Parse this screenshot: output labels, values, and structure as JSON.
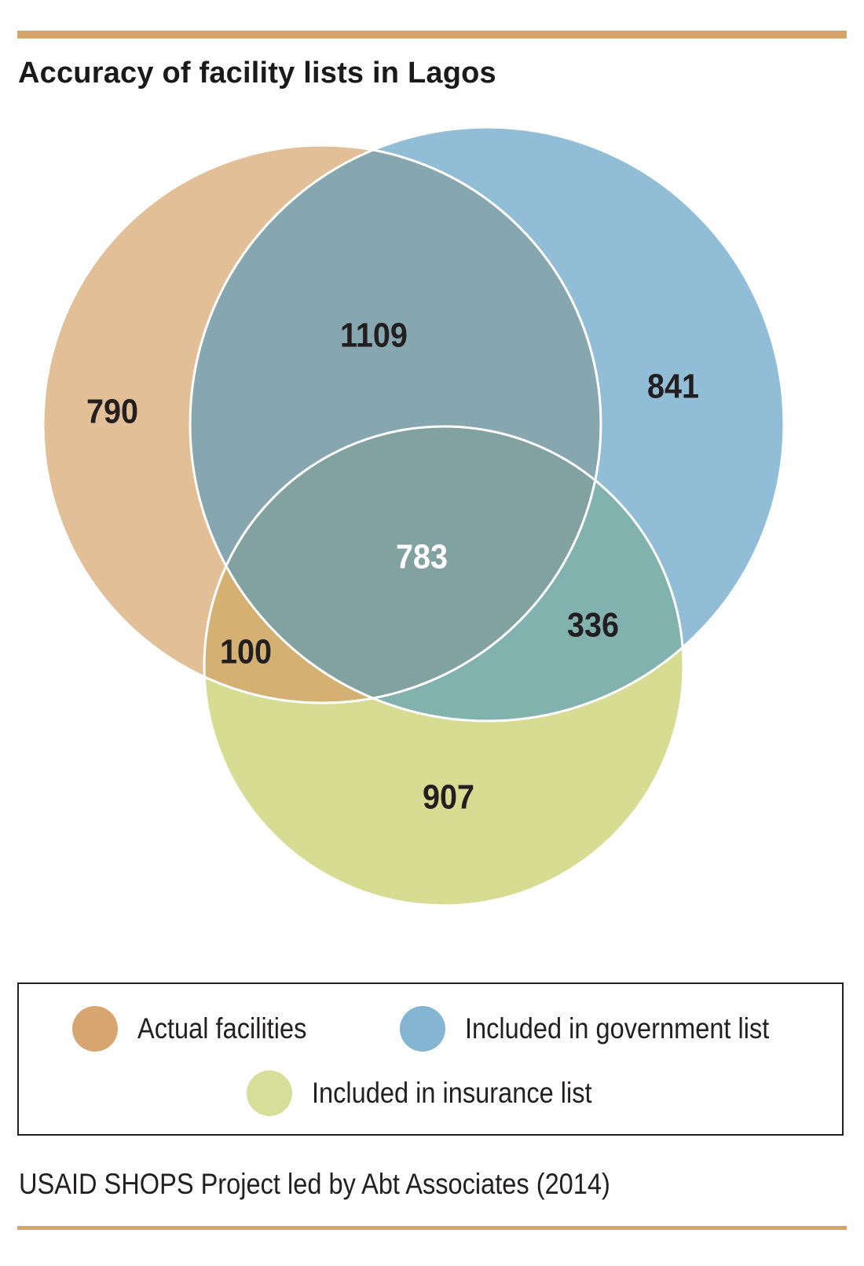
{
  "title": "Accuracy of facility lists in Lagos",
  "source": "USAID SHOPS Project led by Abt Associates (2014)",
  "colors": {
    "rule": "#d5a46a",
    "actual": "#e3bf98",
    "government": "#91bed6",
    "insurance": "#d6dc92",
    "actual_government": "#87a7b0",
    "actual_insurance": "#d4b173",
    "government_insurance": "#82b2ae",
    "all_three": "#81a2a0",
    "legend_actual": "#d7a670",
    "legend_government": "#84b5d2",
    "legend_insurance": "#d6df9a",
    "outline": "#ffffff"
  },
  "legend": {
    "actual": "Actual facilities",
    "government": "Included in government list",
    "insurance": "Included in insurance list"
  },
  "chart_data": {
    "type": "venn",
    "title": "Accuracy of facility lists in Lagos",
    "sets": [
      "Actual facilities",
      "Included in government list",
      "Included in insurance list"
    ],
    "regions": [
      {
        "sets": [
          "Actual facilities"
        ],
        "value": 790,
        "label": "790"
      },
      {
        "sets": [
          "Included in government list"
        ],
        "value": 841,
        "label": "841"
      },
      {
        "sets": [
          "Included in insurance list"
        ],
        "value": 907,
        "label": "907"
      },
      {
        "sets": [
          "Actual facilities",
          "Included in government list"
        ],
        "value": 1109,
        "label": "1109"
      },
      {
        "sets": [
          "Actual facilities",
          "Included in insurance list"
        ],
        "value": 100,
        "label": "100"
      },
      {
        "sets": [
          "Included in government list",
          "Included in insurance list"
        ],
        "value": 336,
        "label": "336"
      },
      {
        "sets": [
          "Actual facilities",
          "Included in government list",
          "Included in insurance list"
        ],
        "value": 783,
        "label": "783"
      }
    ],
    "legend_position": "bottom"
  }
}
